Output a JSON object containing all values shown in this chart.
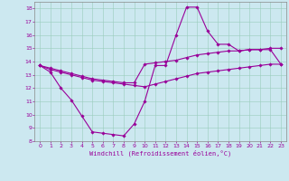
{
  "xlabel": "Windchill (Refroidissement éolien,°C)",
  "xlim": [
    -0.5,
    23.5
  ],
  "ylim": [
    8,
    18.5
  ],
  "xticks": [
    0,
    1,
    2,
    3,
    4,
    5,
    6,
    7,
    8,
    9,
    10,
    11,
    12,
    13,
    14,
    15,
    16,
    17,
    18,
    19,
    20,
    21,
    22,
    23
  ],
  "yticks": [
    8,
    9,
    10,
    11,
    12,
    13,
    14,
    15,
    16,
    17,
    18
  ],
  "bg_color": "#cce8f0",
  "line_color": "#990099",
  "grid_color": "#99ccbb",
  "series": [
    [
      13.7,
      13.2,
      12.0,
      11.1,
      9.9,
      8.7,
      8.6,
      8.5,
      8.4,
      9.3,
      11.0,
      13.7,
      13.7,
      16.0,
      18.1,
      18.1,
      16.3,
      15.3,
      15.3,
      14.8,
      14.9,
      14.9,
      14.9,
      13.8
    ],
    [
      13.7,
      13.5,
      13.3,
      13.1,
      12.9,
      12.7,
      12.6,
      12.5,
      12.4,
      12.4,
      13.8,
      13.9,
      14.0,
      14.1,
      14.3,
      14.5,
      14.6,
      14.7,
      14.8,
      14.8,
      14.9,
      14.9,
      15.0,
      15.0
    ],
    [
      13.7,
      13.4,
      13.2,
      13.0,
      12.8,
      12.6,
      12.5,
      12.4,
      12.3,
      12.2,
      12.1,
      12.3,
      12.5,
      12.7,
      12.9,
      13.1,
      13.2,
      13.3,
      13.4,
      13.5,
      13.6,
      13.7,
      13.8,
      13.8
    ]
  ]
}
